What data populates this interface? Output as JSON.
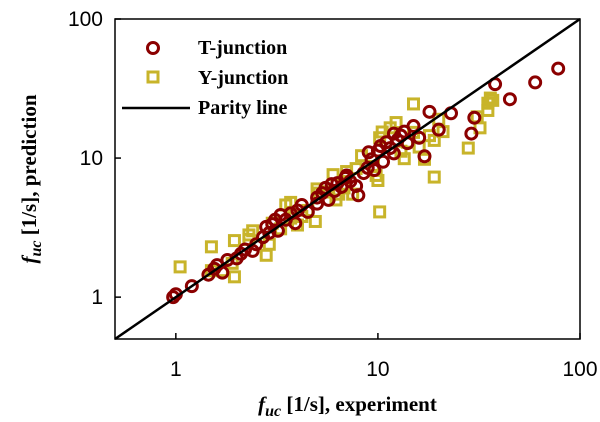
{
  "chart_data": {
    "type": "scatter",
    "x_scale": "log",
    "y_scale": "log",
    "xlim": [
      0.5,
      100
    ],
    "ylim": [
      0.5,
      100
    ],
    "x_ticks": [
      1,
      10,
      100
    ],
    "y_ticks": [
      1,
      10,
      100
    ],
    "x_tick_labels": [
      "1",
      "10",
      "100"
    ],
    "y_tick_labels": [
      "1",
      "10",
      "100"
    ],
    "xlabel": {
      "symbol": "f",
      "subscript": "uc",
      "text": " [1/s], experiment"
    },
    "ylabel": {
      "symbol": "f",
      "subscript": "uc",
      "text": " [1/s], prediction"
    },
    "grid": false,
    "legend_position": "top-left",
    "series": [
      {
        "name": "T-junction",
        "marker": "circle",
        "color": "#8b0000",
        "points": [
          [
            0.97,
            1.0
          ],
          [
            1.0,
            1.05
          ],
          [
            1.2,
            1.2
          ],
          [
            1.45,
            1.45
          ],
          [
            1.55,
            1.6
          ],
          [
            1.6,
            1.7
          ],
          [
            1.7,
            1.5
          ],
          [
            1.8,
            1.85
          ],
          [
            2.0,
            1.9
          ],
          [
            2.1,
            2.05
          ],
          [
            2.2,
            2.2
          ],
          [
            2.4,
            2.15
          ],
          [
            2.5,
            2.4
          ],
          [
            2.7,
            2.7
          ],
          [
            2.9,
            2.9
          ],
          [
            3.0,
            3.35
          ],
          [
            3.1,
            3.6
          ],
          [
            3.2,
            3.0
          ],
          [
            3.3,
            3.9
          ],
          [
            3.5,
            3.6
          ],
          [
            3.7,
            4.0
          ],
          [
            3.9,
            3.4
          ],
          [
            4.0,
            4.2
          ],
          [
            4.5,
            4.1
          ],
          [
            5.0,
            5.2
          ],
          [
            5.3,
            5.6
          ],
          [
            5.5,
            6.1
          ],
          [
            5.7,
            5.0
          ],
          [
            5.9,
            6.5
          ],
          [
            6.1,
            5.8
          ],
          [
            6.3,
            6.6
          ],
          [
            6.6,
            6.2
          ],
          [
            6.9,
            7.2
          ],
          [
            7.3,
            6.8
          ],
          [
            7.8,
            6.3
          ],
          [
            8.0,
            5.4
          ],
          [
            8.5,
            7.8
          ],
          [
            8.9,
            8.5
          ],
          [
            9.3,
            9.8
          ],
          [
            9.6,
            8.2
          ],
          [
            10.0,
            11.3
          ],
          [
            10.3,
            12.2
          ],
          [
            10.6,
            9.4
          ],
          [
            11.0,
            13.0
          ],
          [
            11.5,
            11.8
          ],
          [
            12.0,
            10.8
          ],
          [
            12.5,
            13.5
          ],
          [
            13.5,
            15.5
          ],
          [
            14.0,
            12.8
          ],
          [
            15.0,
            17.0
          ],
          [
            16.0,
            14.0
          ],
          [
            17.0,
            10.3
          ],
          [
            18.0,
            21.5
          ],
          [
            20.0,
            16.0
          ],
          [
            23.0,
            21.0
          ],
          [
            29.0,
            15.0
          ],
          [
            30.0,
            19.5
          ],
          [
            38.0,
            34.0
          ],
          [
            45.0,
            26.5
          ],
          [
            60.0,
            35.0
          ],
          [
            78.0,
            44.0
          ],
          [
            5.0,
            4.7
          ],
          [
            4.2,
            4.6
          ],
          [
            2.8,
            3.2
          ],
          [
            13.0,
            14.5
          ],
          [
            9.0,
            11.0
          ],
          [
            7.0,
            7.5
          ],
          [
            12.0,
            15.0
          ]
        ]
      },
      {
        "name": "Y-junction",
        "marker": "square",
        "color": "#c8b42a",
        "points": [
          [
            1.05,
            1.65
          ],
          [
            1.5,
            2.3
          ],
          [
            1.5,
            1.55
          ],
          [
            1.7,
            1.55
          ],
          [
            1.9,
            1.75
          ],
          [
            1.95,
            1.4
          ],
          [
            1.95,
            2.55
          ],
          [
            2.3,
            2.8
          ],
          [
            2.3,
            2.6
          ],
          [
            2.4,
            3.0
          ],
          [
            2.8,
            2.0
          ],
          [
            2.9,
            2.4
          ],
          [
            3.0,
            3.4
          ],
          [
            3.3,
            3.1
          ],
          [
            3.5,
            4.6
          ],
          [
            3.7,
            3.7
          ],
          [
            3.7,
            4.8
          ],
          [
            4.0,
            3.3
          ],
          [
            4.2,
            3.8
          ],
          [
            4.5,
            4.2
          ],
          [
            4.9,
            3.5
          ],
          [
            5.0,
            6.0
          ],
          [
            5.1,
            5.6
          ],
          [
            5.6,
            5.7
          ],
          [
            6.0,
            7.6
          ],
          [
            6.2,
            5.0
          ],
          [
            6.4,
            5.5
          ],
          [
            6.8,
            6.1
          ],
          [
            7.0,
            8.0
          ],
          [
            7.5,
            5.5
          ],
          [
            7.8,
            8.4
          ],
          [
            8.3,
            10.4
          ],
          [
            9.5,
            8.7
          ],
          [
            9.8,
            7.5
          ],
          [
            10.0,
            6.9
          ],
          [
            10.2,
            4.1
          ],
          [
            10.2,
            14.0
          ],
          [
            10.5,
            15.4
          ],
          [
            11.5,
            16.5
          ],
          [
            12.3,
            18.0
          ],
          [
            13.0,
            11.2
          ],
          [
            13.5,
            9.9
          ],
          [
            14.0,
            13.0
          ],
          [
            15.0,
            24.5
          ],
          [
            15.0,
            15.3
          ],
          [
            16.0,
            12.0
          ],
          [
            17.0,
            9.8
          ],
          [
            18.0,
            14.5
          ],
          [
            19.0,
            13.4
          ],
          [
            19.0,
            7.3
          ],
          [
            20.0,
            19.0
          ],
          [
            21.0,
            15.5
          ],
          [
            28.0,
            11.8
          ],
          [
            31.0,
            19.8
          ],
          [
            32.0,
            16.5
          ],
          [
            35.0,
            22.0
          ],
          [
            35.0,
            24.8
          ],
          [
            36.0,
            27.0
          ],
          [
            37.0,
            26.0
          ]
        ]
      },
      {
        "name": "Parity line",
        "marker": "line",
        "color": "#000000",
        "points": [
          [
            0.5,
            0.5
          ],
          [
            100,
            100
          ]
        ]
      }
    ]
  }
}
